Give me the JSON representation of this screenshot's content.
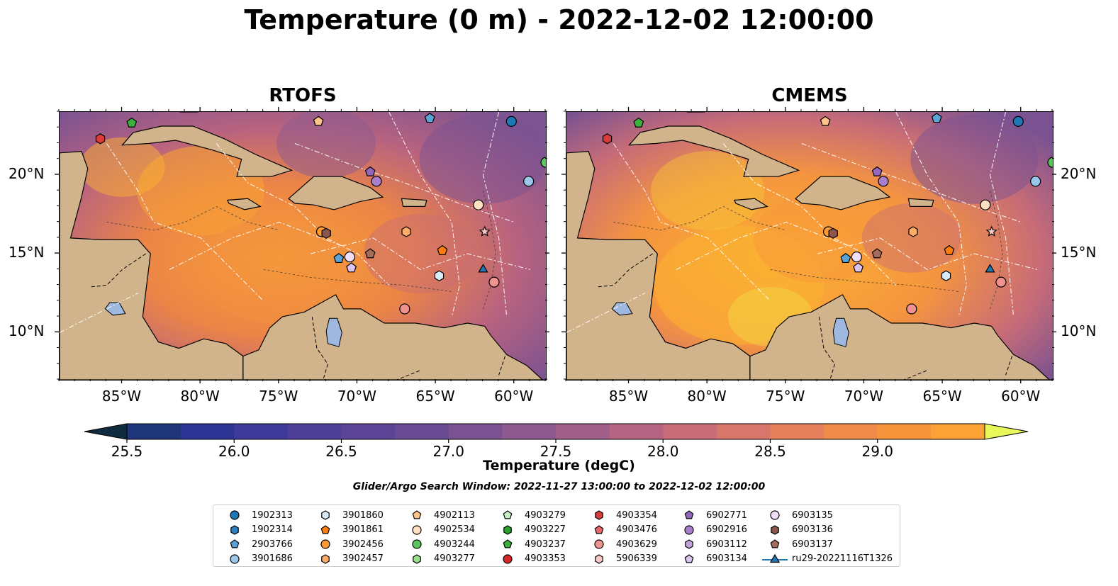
{
  "title": "Temperature (0 m) - 2022-12-02 12:00:00",
  "panels": [
    {
      "name": "RTOFS"
    },
    {
      "name": "CMEMS"
    }
  ],
  "axes": {
    "x_ticks": [
      "85°W",
      "80°W",
      "75°W",
      "70°W",
      "65°W",
      "60°W"
    ],
    "y_ticks": [
      "20°N",
      "15°N",
      "10°N"
    ]
  },
  "map_extent": {
    "lon": [
      -89,
      -58
    ],
    "lat": [
      7,
      24
    ]
  },
  "colorbar": {
    "label": "Temperature (degC)",
    "ticks": [
      "25.5",
      "26.0",
      "26.5",
      "27.0",
      "27.5",
      "28.0",
      "28.5",
      "29.0"
    ],
    "min": 25.375,
    "max": 29.375,
    "step": 0.25,
    "extend": "both",
    "colors": [
      "#0f2b3d",
      "#16335a",
      "#1e357a",
      "#2c3594",
      "#3d3a9a",
      "#4e3f98",
      "#5b4495",
      "#684b92",
      "#7a5291",
      "#8c5a8f",
      "#a05f89",
      "#b56581",
      "#c86c77",
      "#d7766a",
      "#e5805b",
      "#f08a4a",
      "#f7953c",
      "#fba236",
      "#fbb232",
      "#f7c637",
      "#f2db44"
    ],
    "over_color": "#e8f85a"
  },
  "search_window": "Glider/Argo Search Window: 2022-11-27 13:00:00 to 2022-12-02 12:00:00",
  "legend": [
    {
      "label": "1902313",
      "marker": "circle",
      "color": "#1f77b4"
    },
    {
      "label": "1902314",
      "marker": "hexagon",
      "color": "#2f7fc1"
    },
    {
      "label": "2903766",
      "marker": "pentagon",
      "color": "#5aa5d6"
    },
    {
      "label": "3901686",
      "marker": "circle",
      "color": "#9ac8ea"
    },
    {
      "label": "3901860",
      "marker": "hexagon",
      "color": "#d8ecf8"
    },
    {
      "label": "3901861",
      "marker": "pentagon",
      "color": "#ff7f0e"
    },
    {
      "label": "3902456",
      "marker": "circle",
      "color": "#ff9a33"
    },
    {
      "label": "3902457",
      "marker": "hexagon",
      "color": "#ffad66"
    },
    {
      "label": "4902113",
      "marker": "pentagon",
      "color": "#ffc48c"
    },
    {
      "label": "4902534",
      "marker": "circle",
      "color": "#ffe0c2"
    },
    {
      "label": "4903244",
      "marker": "circle",
      "color": "#5cc45c"
    },
    {
      "label": "4903277",
      "marker": "hexagon",
      "color": "#98df8a"
    },
    {
      "label": "4903279",
      "marker": "pentagon",
      "color": "#c9f2c4"
    },
    {
      "label": "4903227",
      "marker": "hexagon",
      "color": "#2ca02c"
    },
    {
      "label": "4903237",
      "marker": "pentagon",
      "color": "#3cb03c"
    },
    {
      "label": "4903353",
      "marker": "circle",
      "color": "#d62728"
    },
    {
      "label": "4903354",
      "marker": "hexagon",
      "color": "#dc3b3c"
    },
    {
      "label": "4903476",
      "marker": "pentagon",
      "color": "#e8656a"
    },
    {
      "label": "4903629",
      "marker": "circle",
      "color": "#f0928f"
    },
    {
      "label": "5906339",
      "marker": "hexagon",
      "color": "#fbc8c3"
    },
    {
      "label": "6902771",
      "marker": "pentagon",
      "color": "#9467bd"
    },
    {
      "label": "6902916",
      "marker": "circle",
      "color": "#a97fcc"
    },
    {
      "label": "6903112",
      "marker": "hexagon",
      "color": "#c3a2de"
    },
    {
      "label": "6903134",
      "marker": "pentagon",
      "color": "#dcc4f0"
    },
    {
      "label": "6903135",
      "marker": "circle",
      "color": "#f0defa"
    },
    {
      "label": "6903136",
      "marker": "hexagon",
      "color": "#8c564b"
    },
    {
      "label": "6903137",
      "marker": "pentagon",
      "color": "#a66d5e"
    },
    {
      "label": "ru29-20221116T1326",
      "marker": "triangle-line",
      "color": "#1f77b4"
    }
  ],
  "floats": [
    {
      "lon": -86.4,
      "lat": 22.3,
      "marker": "hexagon",
      "color": "#dc3b3c"
    },
    {
      "lon": -84.4,
      "lat": 23.3,
      "marker": "pentagon",
      "color": "#3cb03c"
    },
    {
      "lon": -72.5,
      "lat": 23.4,
      "marker": "pentagon",
      "color": "#ffc48c"
    },
    {
      "lon": -65.4,
      "lat": 23.6,
      "marker": "pentagon",
      "color": "#5aa5d6"
    },
    {
      "lon": -60.2,
      "lat": 23.4,
      "marker": "circle",
      "color": "#1f77b4"
    },
    {
      "lon": -58.0,
      "lat": 20.8,
      "marker": "circle",
      "color": "#5cc45c"
    },
    {
      "lon": -59.1,
      "lat": 19.6,
      "marker": "circle",
      "color": "#9ac8ea"
    },
    {
      "lon": -69.2,
      "lat": 20.2,
      "marker": "pentagon",
      "color": "#9467bd"
    },
    {
      "lon": -68.8,
      "lat": 19.6,
      "marker": "circle",
      "color": "#a97fcc"
    },
    {
      "lon": -62.3,
      "lat": 18.1,
      "marker": "circle",
      "color": "#ffe0c2"
    },
    {
      "lon": -72.3,
      "lat": 16.4,
      "marker": "circle",
      "color": "#ff9a33"
    },
    {
      "lon": -72.0,
      "lat": 16.3,
      "marker": "hexagon",
      "color": "#8c564b"
    },
    {
      "lon": -66.9,
      "lat": 16.4,
      "marker": "hexagon",
      "color": "#ffad66"
    },
    {
      "lon": -64.6,
      "lat": 15.2,
      "marker": "pentagon",
      "color": "#ff7f0e"
    },
    {
      "lon": -71.2,
      "lat": 14.7,
      "marker": "pentagon",
      "color": "#5aa5d6"
    },
    {
      "lon": -70.5,
      "lat": 14.8,
      "marker": "circle",
      "color": "#f0defa"
    },
    {
      "lon": -70.4,
      "lat": 14.1,
      "marker": "pentagon",
      "color": "#dcc4f0"
    },
    {
      "lon": -69.2,
      "lat": 15.0,
      "marker": "pentagon",
      "color": "#a66d5e"
    },
    {
      "lon": -64.8,
      "lat": 13.6,
      "marker": "hexagon",
      "color": "#d8ecf8"
    },
    {
      "lon": -61.3,
      "lat": 13.2,
      "marker": "circle",
      "color": "#f0928f"
    },
    {
      "lon": -67.0,
      "lat": 11.5,
      "marker": "circle",
      "color": "#f0928f"
    },
    {
      "lon": -61.9,
      "lat": 16.4,
      "marker": "star",
      "color": "#fbc8c3"
    },
    {
      "lon": -62.0,
      "lat": 14.0,
      "marker": "triangle",
      "color": "#1f77b4"
    }
  ]
}
